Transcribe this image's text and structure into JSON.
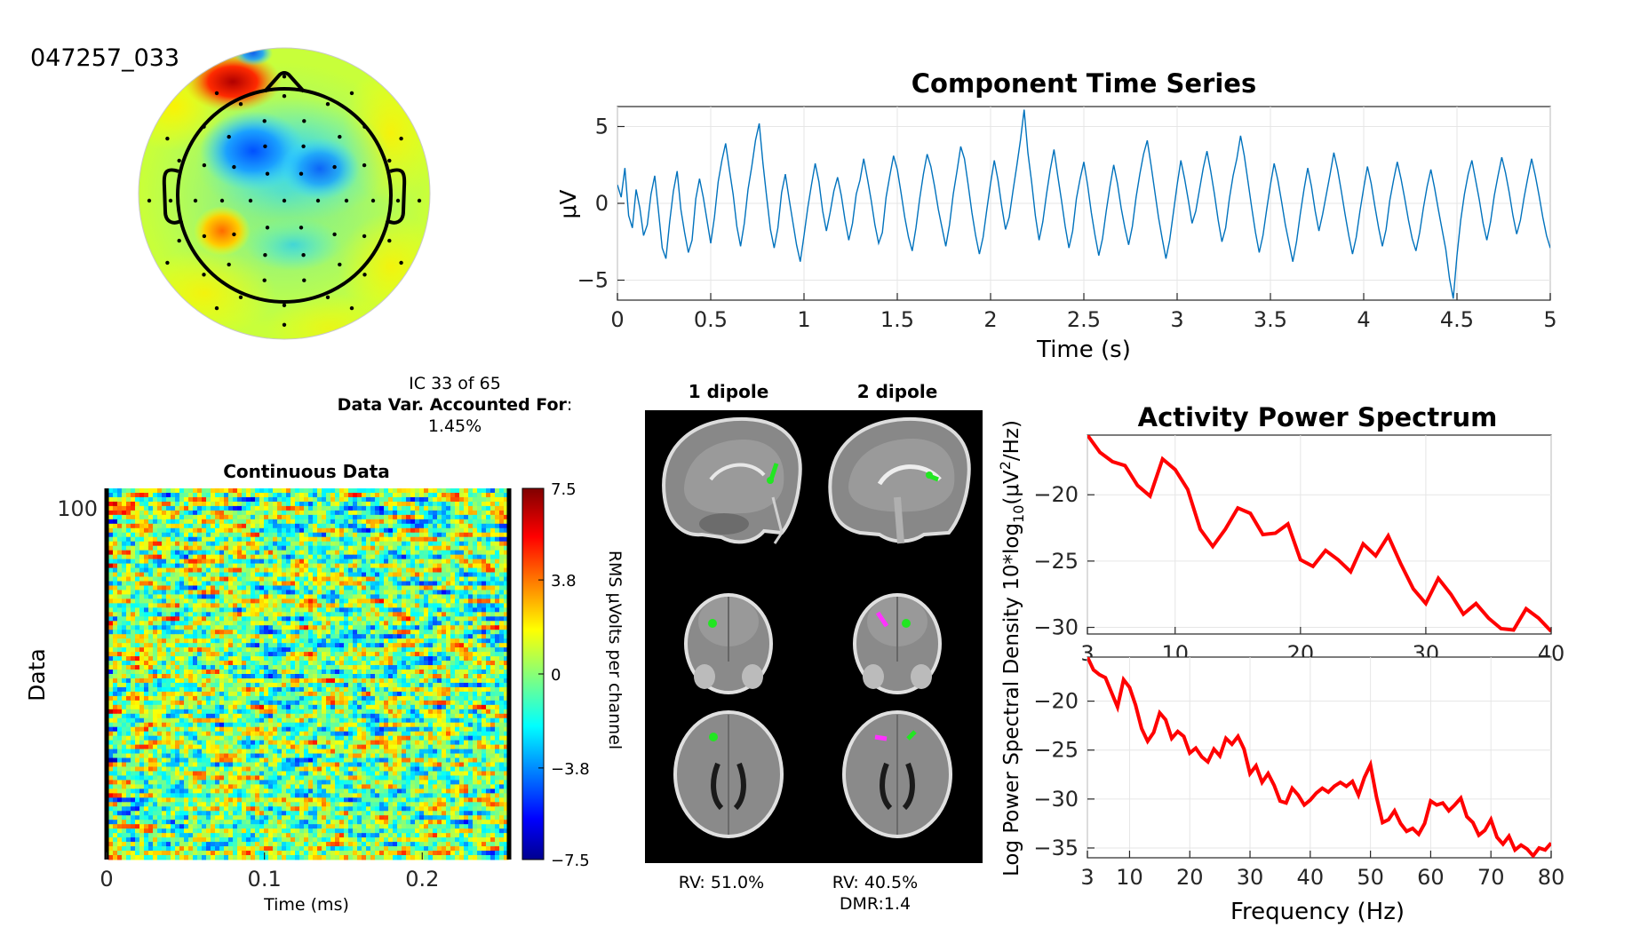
{
  "figure_id": "047257_033",
  "info": {
    "ic_label": "IC 33 of 65",
    "var_label": "Data Var. Accounted For",
    "var_colon": ":",
    "var_value": "1.45%"
  },
  "colors": {
    "series": "#0072bd",
    "spectrum": "#ff0000",
    "dipole1": "#22e622",
    "dipole2": "#ff33ff"
  },
  "chart_data": [
    {
      "type": "line",
      "title": "Component Time Series",
      "xlabel": "Time (s)",
      "ylabel": "μV",
      "xlim": [
        0,
        5
      ],
      "ylim": [
        -6.3,
        6.3
      ],
      "xticks": [
        "0",
        "0.5",
        "1",
        "1.5",
        "2",
        "2.5",
        "3",
        "3.5",
        "4",
        "4.5",
        "5"
      ],
      "yticks": [
        "−5",
        "0",
        "5"
      ],
      "grid": true,
      "x_start": 0,
      "dx": 0.02,
      "values": [
        1.2,
        0.4,
        2.3,
        -0.8,
        -1.6,
        0.9,
        -0.3,
        -2.1,
        -1.4,
        0.6,
        1.8,
        -0.5,
        -2.9,
        -3.6,
        -1.2,
        0.8,
        2.1,
        -0.4,
        -1.9,
        -3.2,
        -2.4,
        0.3,
        1.6,
        0.4,
        -1.1,
        -2.6,
        -0.9,
        1.4,
        2.8,
        3.9,
        2.2,
        0.6,
        -1.5,
        -2.8,
        -1.3,
        0.9,
        2.4,
        4.1,
        5.2,
        2.6,
        0.4,
        -1.7,
        -2.9,
        -1.6,
        0.7,
        1.9,
        0.3,
        -1.2,
        -2.7,
        -3.8,
        -2.1,
        -0.3,
        1.2,
        2.6,
        1.4,
        -0.5,
        -1.8,
        -0.6,
        0.8,
        1.7,
        0.5,
        -1.1,
        -2.4,
        -1.3,
        0.6,
        1.5,
        2.9,
        1.6,
        0.2,
        -1.4,
        -2.6,
        -1.9,
        0.4,
        1.8,
        3.1,
        2.2,
        0.7,
        -0.9,
        -2.2,
        -3.1,
        -1.6,
        0.3,
        1.9,
        3.2,
        2.4,
        1.1,
        -0.4,
        -1.6,
        -2.8,
        -1.4,
        0.6,
        2.1,
        3.7,
        2.9,
        1.2,
        -0.6,
        -2.1,
        -3.3,
        -2.2,
        -0.4,
        1.3,
        2.8,
        1.5,
        -0.2,
        -1.7,
        -0.9,
        0.8,
        2.4,
        4.1,
        6.1,
        3.3,
        1.4,
        -0.8,
        -2.4,
        -1.2,
        0.6,
        2.2,
        3.5,
        1.8,
        0.2,
        -1.5,
        -2.9,
        -1.8,
        0.3,
        1.6,
        2.7,
        1.2,
        -0.6,
        -2.1,
        -3.4,
        -2.3,
        -0.5,
        1.1,
        2.5,
        1.3,
        -0.3,
        -1.6,
        -2.7,
        -1.5,
        0.4,
        1.9,
        3.2,
        4.1,
        2.5,
        0.8,
        -0.9,
        -2.3,
        -3.6,
        -2.4,
        -0.6,
        1.2,
        2.8,
        1.6,
        0.2,
        -1.3,
        -0.5,
        0.9,
        2.3,
        3.4,
        2.1,
        0.6,
        -1.1,
        -2.5,
        -1.6,
        0.3,
        1.8,
        2.9,
        4.4,
        3.1,
        1.4,
        -0.3,
        -1.9,
        -3.2,
        -2.1,
        -0.4,
        1.2,
        2.6,
        1.5,
        0.1,
        -1.4,
        -2.6,
        -3.8,
        -2.5,
        -0.7,
        0.9,
        2.3,
        1.1,
        -0.5,
        -1.8,
        -0.7,
        0.6,
        1.9,
        3.3,
        2.2,
        0.8,
        -0.7,
        -2.1,
        -3.3,
        -2.2,
        -0.5,
        1.0,
        2.4,
        1.3,
        -0.2,
        -1.6,
        -2.8,
        -1.7,
        0.2,
        1.5,
        2.7,
        1.6,
        0.3,
        -1.1,
        -2.3,
        -3.1,
        -1.9,
        -0.3,
        1.1,
        2.2,
        1.0,
        -0.4,
        -1.7,
        -3.0,
        -4.9,
        -6.2,
        -3.4,
        -1.1,
        0.6,
        1.9,
        2.8,
        1.5,
        0.2,
        -1.3,
        -2.4,
        -1.2,
        0.5,
        1.8,
        3.0,
        2.0,
        0.7,
        -0.8,
        -2.0,
        -1.1,
        0.4,
        1.7,
        2.9,
        1.8,
        0.5,
        -0.9,
        -2.1,
        -2.9,
        -1.7,
        -0.2,
        1.2,
        2.4,
        3.6,
        4.2,
        3.1,
        1.6,
        0.2,
        -1.3,
        -2.5,
        -1.5,
        0.1,
        1.4,
        2.3,
        1.2,
        -0.3,
        -1.6,
        -2.9,
        -3.7,
        -2.3,
        -0.8,
        0.7,
        1.8,
        0.4
      ]
    },
    {
      "type": "heatmap",
      "title": "Continuous Data",
      "xlabel": "Time (ms)",
      "ylabel": "Data",
      "xlim": [
        0,
        0.255
      ],
      "xticks": [
        "0",
        "0.1",
        "0.2"
      ],
      "yticks": [
        "100"
      ],
      "colorbar": {
        "label": "RMS μVolts per channel",
        "ticks": [
          "7.5",
          "3.8",
          "0",
          "−3.8",
          "−7.5"
        ],
        "range": [
          -7.5,
          7.5
        ],
        "colormap": "jet"
      }
    },
    {
      "type": "image",
      "titles": [
        "1 dipole",
        "2 dipole"
      ],
      "captions": [
        "RV: 51.0%",
        "RV: 40.5%",
        "DMR:1.4"
      ]
    },
    {
      "type": "line",
      "title": "Activity Power Spectrum",
      "ylabel": "Log Power Spectral Density 10*log",
      "ylabel_sub": "10",
      "ylabel_tail_a": "(μV",
      "ylabel_sup": "2",
      "ylabel_tail_b": "/Hz)",
      "xlim": [
        3,
        40
      ],
      "ylim": [
        -30.5,
        -15.5
      ],
      "xticks": [
        "3",
        "10",
        "20",
        "30",
        "40"
      ],
      "yticks": [
        "−20",
        "−25",
        "−30"
      ],
      "x": [
        3,
        4,
        5,
        6,
        7,
        8,
        9,
        10,
        11,
        12,
        13,
        14,
        15,
        16,
        17,
        18,
        19,
        20,
        21,
        22,
        23,
        24,
        25,
        26,
        27,
        28,
        29,
        30,
        31,
        32,
        33,
        34,
        35,
        36,
        37,
        38,
        39,
        40
      ],
      "values": [
        -15.5,
        -16.8,
        -17.5,
        -17.8,
        -19.3,
        -20.1,
        -17.3,
        -18.1,
        -19.6,
        -22.6,
        -23.9,
        -22.6,
        -21,
        -21.4,
        -23,
        -22.9,
        -22.2,
        -24.9,
        -25.4,
        -24.2,
        -24.9,
        -25.8,
        -23.7,
        -24.6,
        -23.1,
        -25.2,
        -27.1,
        -28.2,
        -26.3,
        -27.5,
        -29,
        -28.2,
        -29.3,
        -30.1,
        -30.2,
        -28.6,
        -29.3,
        -30.3
      ]
    },
    {
      "type": "line",
      "xlabel": "Frequency (Hz)",
      "xlim": [
        3,
        80
      ],
      "ylim": [
        -36,
        -15.5
      ],
      "xticks": [
        "3",
        "10",
        "20",
        "30",
        "40",
        "50",
        "60",
        "70",
        "80"
      ],
      "yticks": [
        "−20",
        "−25",
        "−30",
        "−35"
      ],
      "x": [
        3,
        4,
        5,
        6,
        7,
        8,
        9,
        10,
        11,
        12,
        13,
        14,
        15,
        16,
        17,
        18,
        19,
        20,
        21,
        22,
        23,
        24,
        25,
        26,
        27,
        28,
        29,
        30,
        31,
        32,
        33,
        34,
        35,
        36,
        37,
        38,
        39,
        40,
        41,
        42,
        43,
        44,
        45,
        46,
        47,
        48,
        49,
        50,
        51,
        52,
        53,
        54,
        55,
        56,
        57,
        58,
        59,
        60,
        61,
        62,
        63,
        64,
        65,
        66,
        67,
        68,
        69,
        70,
        71,
        72,
        73,
        74,
        75,
        76,
        77,
        78,
        79,
        80
      ],
      "values": [
        -15.5,
        -16.8,
        -17.3,
        -17.6,
        -19.1,
        -20.6,
        -17.8,
        -18.6,
        -20.4,
        -22.8,
        -24.1,
        -23.2,
        -21.2,
        -21.9,
        -23.8,
        -23.1,
        -23.6,
        -25.3,
        -24.8,
        -25.7,
        -26.2,
        -24.9,
        -25.6,
        -23.8,
        -24.4,
        -23.6,
        -24.9,
        -27.4,
        -26.6,
        -28.3,
        -27.4,
        -28.6,
        -30.2,
        -30.4,
        -28.9,
        -29.6,
        -30.6,
        -30.1,
        -29.4,
        -28.9,
        -29.3,
        -28.7,
        -28.3,
        -28.7,
        -28.2,
        -29.6,
        -27.8,
        -26.5,
        -29.8,
        -32.4,
        -32.1,
        -31.2,
        -32.5,
        -33.3,
        -33.0,
        -33.6,
        -32.5,
        -30.2,
        -30.6,
        -30.4,
        -31.2,
        -30.6,
        -29.9,
        -31.8,
        -32.4,
        -33.7,
        -33.2,
        -32.1,
        -33.9,
        -34.6,
        -33.8,
        -35.2,
        -34.7,
        -35.1,
        -35.8,
        -35.0,
        -35.2,
        -34.5
      ]
    }
  ]
}
